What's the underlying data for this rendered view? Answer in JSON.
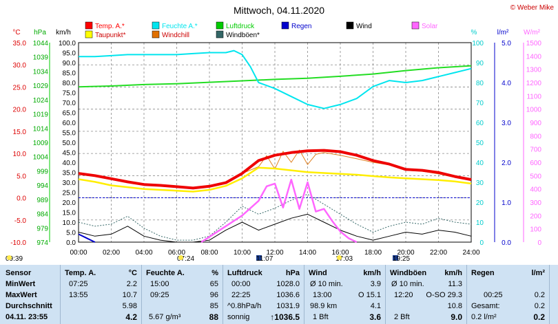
{
  "chart_data": {
    "type": "line",
    "title": "Mittwoch, 04.11.2020",
    "x_ticks": [
      "00:00",
      "02:00",
      "04:00",
      "06:00",
      "08:00",
      "10:00",
      "12:00",
      "14:00",
      "16:00",
      "18:00",
      "20:00",
      "22:00",
      "24:00"
    ],
    "axes": {
      "temp": {
        "unit": "°C",
        "ticks": [
          "35.0",
          "30.0",
          "25.0",
          "20.0",
          "15.0",
          "10.0",
          "5.0",
          "0.0",
          "-5.0",
          "-10.0"
        ],
        "range": [
          -10,
          35
        ]
      },
      "hpa": {
        "unit": "hPa",
        "ticks": [
          "1044",
          "1039",
          "1034",
          "1029",
          "1024",
          "1019",
          "1014",
          "1009",
          "1004",
          "999",
          "994",
          "989",
          "984",
          "979",
          "974"
        ],
        "range": [
          974,
          1044
        ]
      },
      "kmh": {
        "unit": "km/h",
        "ticks": [
          "100.0",
          "95.0",
          "90.0",
          "85.0",
          "80.0",
          "75.0",
          "70.0",
          "65.0",
          "60.0",
          "55.0",
          "50.0",
          "45.0",
          "40.0",
          "35.0",
          "30.0",
          "25.0",
          "20.0",
          "15.0",
          "10.0",
          "5.0",
          "0.0"
        ],
        "range": [
          0,
          100
        ]
      },
      "pct": {
        "unit": "%",
        "ticks": [
          "100",
          "90",
          "80",
          "70",
          "60",
          "50",
          "40",
          "30",
          "20",
          "10",
          "0"
        ],
        "range": [
          0,
          100
        ]
      },
      "rain": {
        "unit": "l/m²",
        "ticks": [
          "5.0",
          "4.0",
          "3.0",
          "2.0",
          "1.0",
          "0.0"
        ],
        "range": [
          0,
          5
        ]
      },
      "solar": {
        "unit": "W/m²",
        "ticks": [
          "1500",
          "1400",
          "1300",
          "1200",
          "1100",
          "1000",
          "900",
          "800",
          "700",
          "600",
          "500",
          "400",
          "300",
          "200",
          "100",
          "0"
        ],
        "range": [
          0,
          1500
        ]
      }
    },
    "legend": [
      {
        "label": "Temp. A.*",
        "color": "#ff0000"
      },
      {
        "label": "Feuchte A.*",
        "color": "#00e5ee"
      },
      {
        "label": "Luftdruck",
        "color": "#00cc00"
      },
      {
        "label": "Regen",
        "color": "#0000cc"
      },
      {
        "label": "Wind",
        "color": "#000000"
      },
      {
        "label": "Solar",
        "color": "#ff66ff"
      },
      {
        "label": "Taupunkt*",
        "color": "#ffff00"
      },
      {
        "label": "Windchill",
        "color": "#e07000"
      },
      {
        "label": "Windböen*",
        "color": "#336666"
      }
    ],
    "series": [
      {
        "name": "Temp. A.*",
        "axis": "temp",
        "x": [
          0,
          1,
          2,
          3,
          4,
          5,
          6,
          7,
          8,
          9,
          10,
          11,
          12,
          13,
          14,
          15,
          16,
          17,
          18,
          19,
          20,
          21,
          22,
          23,
          24
        ],
        "values": [
          5.5,
          5.0,
          4.3,
          3.6,
          3.0,
          2.8,
          2.5,
          2.2,
          2.6,
          3.4,
          5.5,
          8.4,
          9.6,
          10.2,
          10.6,
          10.7,
          10.4,
          9.6,
          8.4,
          7.6,
          6.4,
          6.2,
          5.7,
          4.8,
          4.1
        ]
      },
      {
        "name": "Taupunkt*",
        "axis": "temp",
        "x": [
          0,
          1,
          2,
          3,
          4,
          5,
          6,
          7,
          8,
          9,
          10,
          11,
          12,
          13,
          14,
          15,
          16,
          17,
          18,
          19,
          20,
          21,
          22,
          23,
          24
        ],
        "values": [
          4.2,
          3.6,
          2.8,
          2.4,
          2.0,
          1.8,
          1.6,
          1.4,
          1.8,
          2.7,
          4.4,
          6.8,
          6.6,
          6.2,
          5.8,
          5.6,
          5.4,
          5.2,
          4.9,
          4.6,
          4.4,
          4.2,
          4.0,
          3.7,
          3.2
        ]
      },
      {
        "name": "Windchill",
        "axis": "temp",
        "x": [
          0,
          1,
          2,
          3,
          4,
          5,
          6,
          7,
          8,
          9,
          10,
          11,
          11.5,
          12,
          12.5,
          13,
          13.5,
          14,
          14.5,
          15,
          16,
          17,
          18,
          19,
          20,
          21,
          22,
          23,
          24
        ],
        "values": [
          5.5,
          5.0,
          4.3,
          3.6,
          3.0,
          2.8,
          2.5,
          2.2,
          2.6,
          3.4,
          5.5,
          7.0,
          9.5,
          6.5,
          10.5,
          8.0,
          10.8,
          7.5,
          9.8,
          10.2,
          9.6,
          8.8,
          8.0,
          7.4,
          6.2,
          6.0,
          5.4,
          4.6,
          4.0
        ]
      },
      {
        "name": "Feuchte A.*",
        "axis": "pct",
        "x": [
          0,
          1,
          2,
          3,
          4,
          5,
          6,
          7,
          8,
          9,
          9.5,
          10,
          10.5,
          11,
          12,
          13,
          14,
          15,
          16,
          17,
          18,
          19,
          20,
          21,
          22,
          23,
          24
        ],
        "values": [
          93,
          93,
          93.5,
          94,
          94,
          94,
          94,
          94.5,
          95,
          95,
          96,
          94,
          88,
          80,
          77,
          73,
          69,
          67,
          69,
          72,
          78,
          81,
          80,
          81,
          83,
          85,
          87
        ]
      },
      {
        "name": "Luftdruck",
        "axis": "hpa",
        "x": [
          0,
          2,
          4,
          6,
          8,
          10,
          12,
          14,
          16,
          18,
          20,
          22,
          24
        ],
        "values": [
          1028.5,
          1028.8,
          1029.3,
          1029.6,
          1030.1,
          1030.6,
          1031.1,
          1031.5,
          1032.2,
          1033.0,
          1034.2,
          1035.2,
          1035.9
        ]
      },
      {
        "name": "Wind",
        "axis": "kmh",
        "x": [
          0,
          1,
          2,
          3,
          4,
          5,
          6,
          7,
          8,
          9,
          10,
          11,
          12,
          13,
          14,
          15,
          16,
          17,
          18,
          19,
          20,
          21,
          22,
          23,
          24
        ],
        "values": [
          5,
          3,
          4,
          8,
          3,
          1,
          0,
          0,
          1,
          6,
          10,
          6,
          9,
          12,
          14,
          10,
          6,
          3,
          1,
          3,
          5,
          4,
          6,
          5,
          3
        ]
      },
      {
        "name": "Windböen*",
        "axis": "kmh",
        "x": [
          0,
          1,
          2,
          3,
          4,
          5,
          6,
          7,
          8,
          9,
          10,
          11,
          12,
          13,
          14,
          15,
          16,
          17,
          18,
          19,
          20,
          21,
          22,
          23,
          24
        ],
        "values": [
          10,
          8,
          9,
          13,
          7,
          3,
          1,
          1,
          3,
          10,
          18,
          14,
          17,
          21,
          24,
          19,
          14,
          9,
          5,
          8,
          10,
          9,
          12,
          10,
          9
        ]
      },
      {
        "name": "Solar",
        "axis": "solar",
        "x": [
          7.5,
          8,
          9,
          10,
          11,
          11.5,
          12,
          12.5,
          13,
          13.5,
          14,
          14.5,
          15,
          15.5,
          16,
          16.5,
          17
        ],
        "values": [
          0,
          40,
          120,
          200,
          310,
          420,
          440,
          260,
          470,
          250,
          450,
          230,
          250,
          160,
          80,
          30,
          0
        ]
      },
      {
        "name": "Regen",
        "axis": "rain",
        "x": [
          0,
          0.5,
          1
        ],
        "values": [
          0.2,
          0.1,
          0
        ]
      }
    ],
    "reference_line": {
      "axis": "temp",
      "value": 0.0
    }
  },
  "copyright": "© Weber Mike",
  "timebar": {
    "t1": "09:39",
    "t2": "07:24",
    "t3": "11:07",
    "t4": "17:03",
    "t5": "19:25"
  },
  "table": {
    "sensor": {
      "h": "Sensor",
      "min": "MinWert",
      "max": "MaxWert",
      "avg": "Durchschnitt",
      "date": "04.11. 23:55"
    },
    "temp": {
      "h": "Temp. A.",
      "u": "°C",
      "min_t": "07:25",
      "min_v": "2.2",
      "max_t": "13:55",
      "max_v": "10.7",
      "avg": "5.98",
      "cur": "4.2"
    },
    "hum": {
      "h": "Feuchte A.",
      "u": "%",
      "min_t": "15:00",
      "min_v": "65",
      "max_t": "09:25",
      "max_v": "96",
      "avg": "85",
      "abs": "5.67 g/m³",
      "cur": "88"
    },
    "press": {
      "h": "Luftdruck",
      "u": "hPa",
      "min_t": "00:00",
      "min_v": "1028.0",
      "max_t": "22:25",
      "max_v": "1036.6",
      "trend": "^0.8hPa/h",
      "avg": "1031.9",
      "wx": "sonnig",
      "cur": "1036.5"
    },
    "wind": {
      "h": "Wind",
      "u": "km/h",
      "r1a": "Ø 10 min.",
      "r1b": "3.9",
      "r2a": "13:00",
      "r2b": "O 15.1",
      "r3a": "98.9 km",
      "r3b": "4.1",
      "r4a": "1 Bft",
      "r4b": "3.6"
    },
    "gust": {
      "h": "Windböen",
      "u": "km/h",
      "r1a": "Ø 10 min.",
      "r1b": "11.3",
      "r2a": "12:20",
      "r2b": "O-SO 29.3",
      "r3b": "10.8",
      "r4a": "2 Bft",
      "r4b": "9.0"
    },
    "rain": {
      "h": "Regen",
      "u": "l/m²",
      "r2a": "00:25",
      "r2b": "0.2",
      "r3a": "Gesamt:",
      "r3b": "0.2",
      "r4a": "0.2 l/m²",
      "r4b": "0.2"
    }
  }
}
